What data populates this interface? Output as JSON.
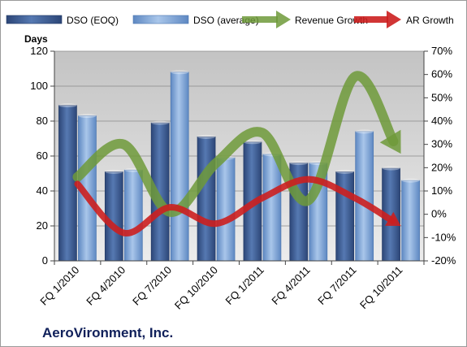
{
  "chart_data": {
    "type": "bar",
    "title": "",
    "company_label": "AeroVironment, Inc.",
    "ylabel": "Days",
    "ylim": [
      0,
      120
    ],
    "y_ticks": [
      0,
      20,
      40,
      60,
      80,
      100,
      120
    ],
    "y2lim": [
      -20,
      70
    ],
    "y2_ticks": [
      -20,
      -10,
      0,
      10,
      20,
      30,
      40,
      50,
      60,
      70
    ],
    "y2_unit": "%",
    "grid": true,
    "legend_position": "top",
    "categories": [
      "FQ 1/2010",
      "FQ 4/2010",
      "FQ 7/2010",
      "FQ 10/2010",
      "FQ 1/2011",
      "FQ 4/2011",
      "FQ 7/2011",
      "FQ 10/2011"
    ],
    "series": [
      {
        "name": "DSO (EOQ)",
        "kind": "bar",
        "axis": "left",
        "color": "#3f5e93",
        "values": [
          89,
          51,
          79,
          71,
          68,
          56,
          51,
          53
        ]
      },
      {
        "name": "DSO (average)",
        "kind": "bar",
        "axis": "left",
        "color": "#7fa6d8",
        "values": [
          83,
          52,
          108,
          59,
          61,
          56,
          74,
          46
        ]
      },
      {
        "name": "Revenue Growth",
        "kind": "line",
        "axis": "right",
        "color": "#6f9a3a",
        "values": [
          16,
          30,
          1,
          22,
          35,
          6,
          59,
          26
        ]
      },
      {
        "name": "AR Growth",
        "kind": "line",
        "axis": "right",
        "color": "#cc1f1f",
        "values": [
          13,
          -8,
          3,
          -4,
          7,
          15,
          7,
          -5
        ]
      }
    ]
  }
}
